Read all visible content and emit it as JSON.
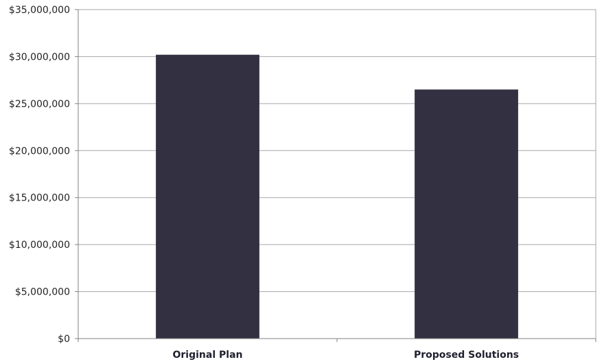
{
  "chart_data": {
    "type": "bar",
    "title": "",
    "xlabel": "",
    "ylabel": "",
    "categories": [
      "Original Plan",
      "Proposed Solutions"
    ],
    "values": [
      30200000,
      26500000
    ],
    "ylim": [
      0,
      35000000
    ],
    "y_ticks": [
      0,
      5000000,
      10000000,
      15000000,
      20000000,
      25000000,
      30000000,
      35000000
    ],
    "y_tick_labels": [
      "$0",
      "$5,000,000",
      "$10,000,000",
      "$15,000,000",
      "$20,000,000",
      "$25,000,000",
      "$30,000,000",
      "$35,000,000"
    ],
    "grid": true,
    "legend": "none",
    "colors": {
      "bar": "#333041",
      "grid": "#a6a6a6",
      "axis": "#808080"
    }
  }
}
